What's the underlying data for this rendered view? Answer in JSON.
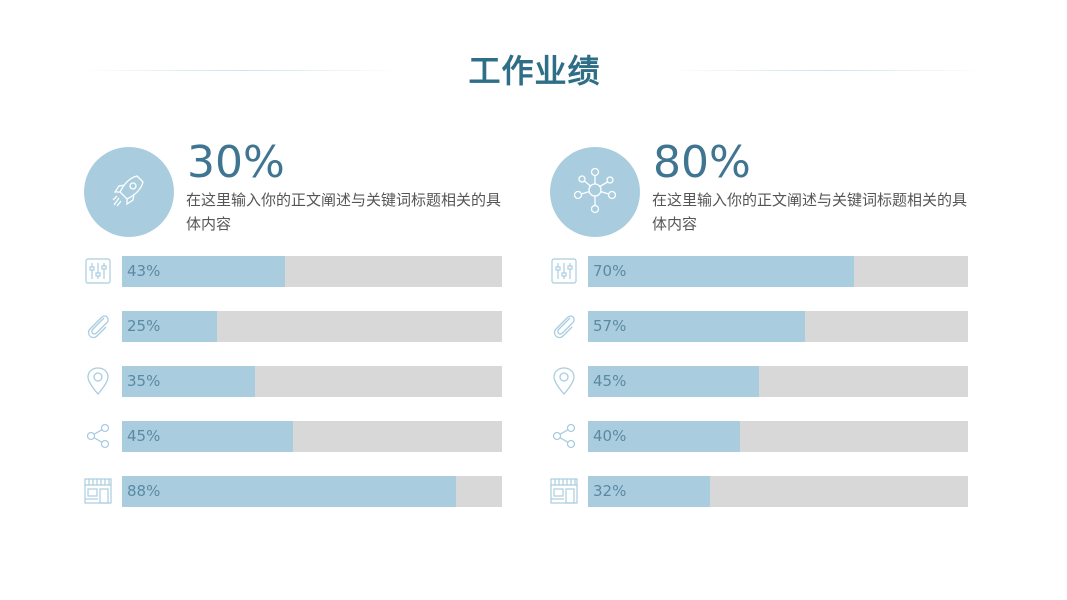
{
  "title": "工作业绩",
  "panels": [
    {
      "id": "left",
      "badge_icon": "rocket-icon",
      "percent": "30%",
      "description": "在这里输入你的正文阐述与关键词标题相关的具体内容",
      "bars": [
        {
          "icon": "sliders-icon",
          "label": "43%",
          "value": 43
        },
        {
          "icon": "paperclip-icon",
          "label": "25%",
          "value": 25
        },
        {
          "icon": "location-pin-icon",
          "label": "35%",
          "value": 35
        },
        {
          "icon": "share-icon",
          "label": "45%",
          "value": 45
        },
        {
          "icon": "storefront-icon",
          "label": "88%",
          "value": 88
        }
      ]
    },
    {
      "id": "right",
      "badge_icon": "network-icon",
      "percent": "80%",
      "description": "在这里输入你的正文阐述与关键词标题相关的具体内容",
      "bars": [
        {
          "icon": "sliders-icon",
          "label": "70%",
          "value": 70
        },
        {
          "icon": "paperclip-icon",
          "label": "57%",
          "value": 57
        },
        {
          "icon": "location-pin-icon",
          "label": "45%",
          "value": 45
        },
        {
          "icon": "share-icon",
          "label": "40%",
          "value": 40
        },
        {
          "icon": "storefront-icon",
          "label": "32%",
          "value": 32
        }
      ]
    }
  ],
  "colors": {
    "title": "#2f6e87",
    "accent": "#a9cddf",
    "track": "#d8d8d8",
    "big_percent": "#3f7591"
  },
  "chart_data": [
    {
      "type": "bar",
      "orientation": "horizontal",
      "title": "30%",
      "categories": [
        "sliders",
        "paperclip",
        "location",
        "share",
        "storefront"
      ],
      "values": [
        43,
        25,
        35,
        45,
        88
      ],
      "xlim": [
        0,
        100
      ]
    },
    {
      "type": "bar",
      "orientation": "horizontal",
      "title": "80%",
      "categories": [
        "sliders",
        "paperclip",
        "location",
        "share",
        "storefront"
      ],
      "values": [
        70,
        57,
        45,
        40,
        32
      ],
      "xlim": [
        0,
        100
      ]
    }
  ]
}
